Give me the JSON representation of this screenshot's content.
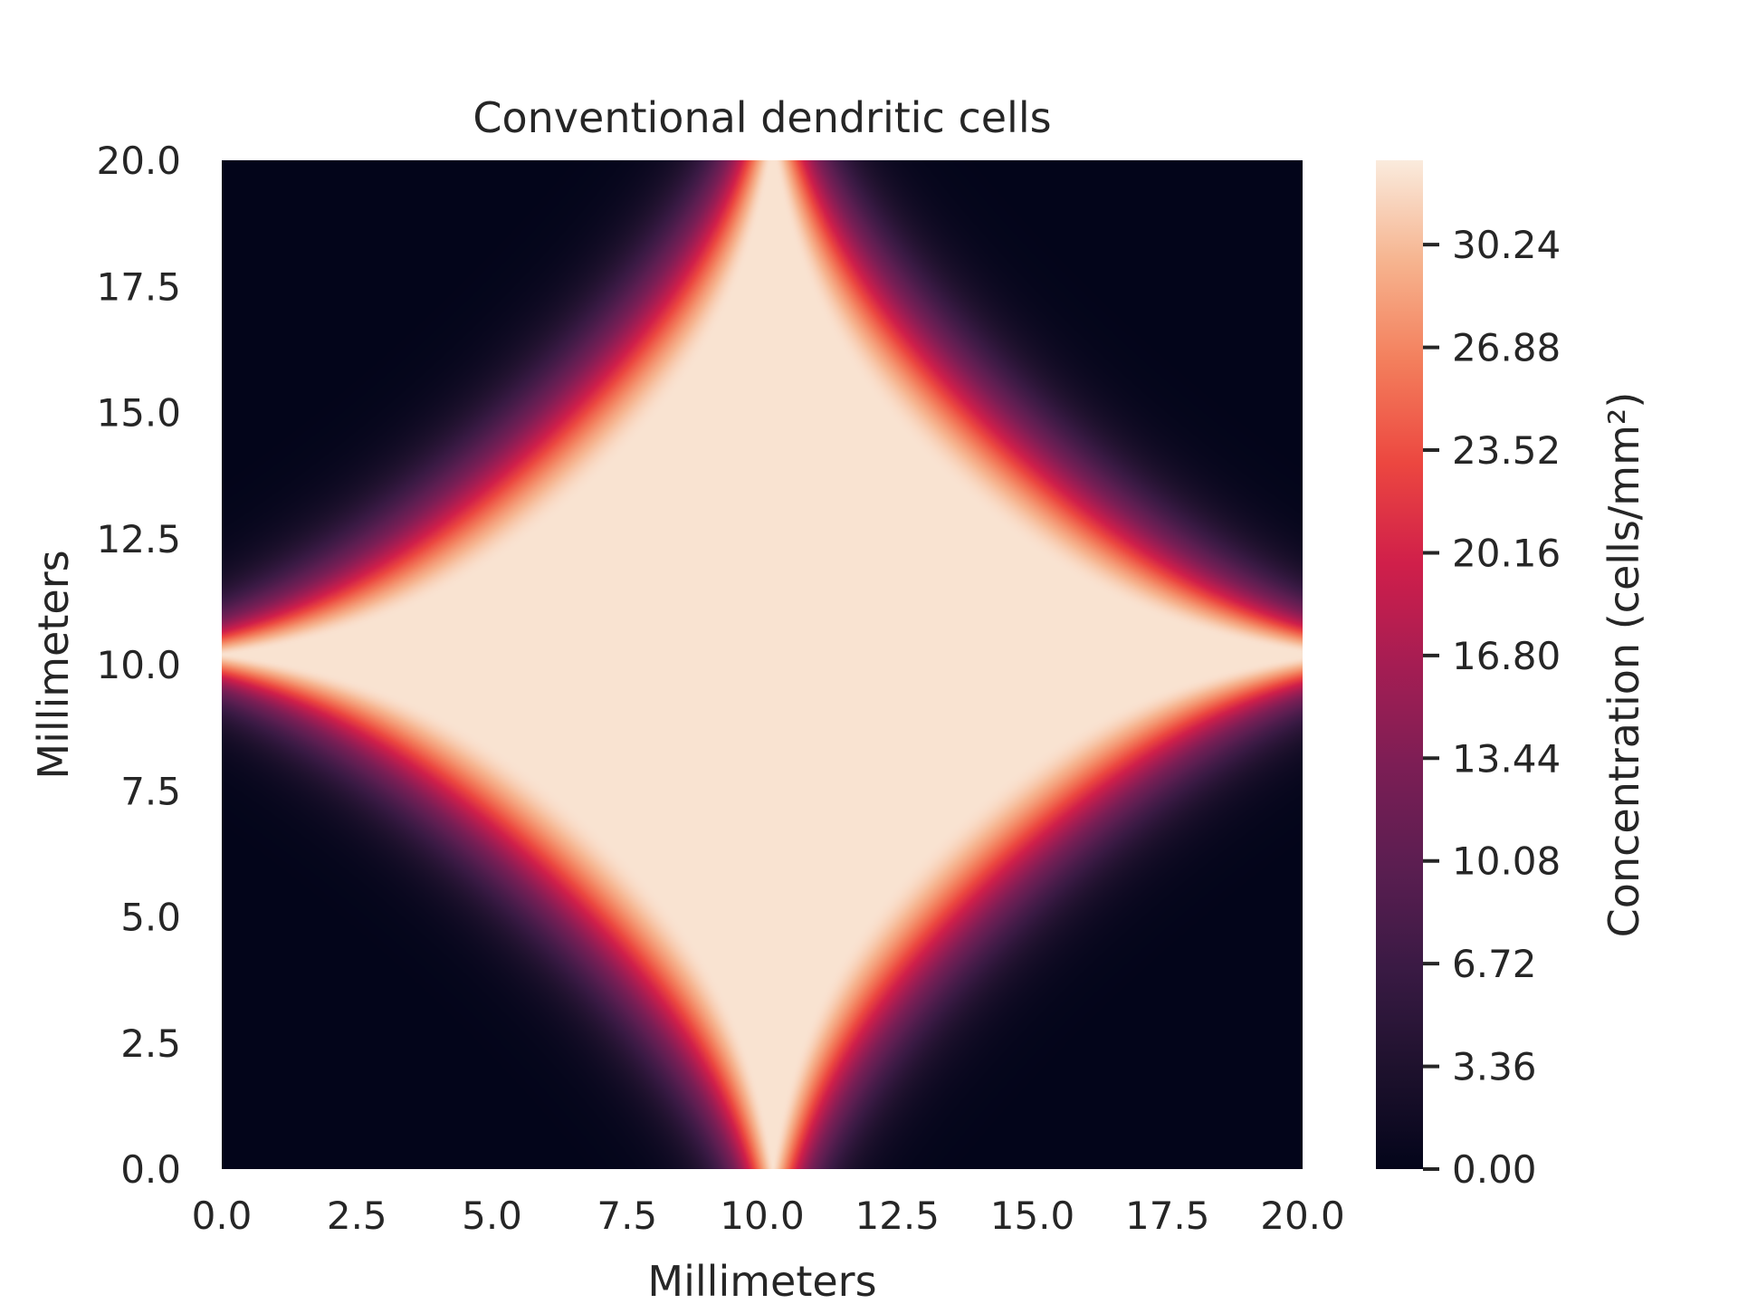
{
  "chart_data": {
    "type": "heatmap",
    "title": "Conventional dendritic cells",
    "xlabel": "Millimeters",
    "ylabel": "Millimeters",
    "xlim": [
      0.0,
      20.0
    ],
    "ylim": [
      0.0,
      20.0
    ],
    "x_ticks": [
      "0.0",
      "2.5",
      "5.0",
      "7.5",
      "10.0",
      "12.5",
      "15.0",
      "17.5",
      "20.0"
    ],
    "y_ticks": [
      "0.0",
      "2.5",
      "5.0",
      "7.5",
      "10.0",
      "12.5",
      "15.0",
      "17.5",
      "20.0"
    ],
    "colorbar": {
      "label": "Concentration (cells/mm²)",
      "range": [
        0.0,
        33.0
      ],
      "ticks": [
        "0.00",
        "3.36",
        "6.72",
        "10.08",
        "13.44",
        "16.80",
        "20.16",
        "23.52",
        "26.88",
        "30.24"
      ],
      "colormap": "rocket"
    },
    "grid": false,
    "field": {
      "description": "Concentration peaks at the edge midpoints (10.2, 0), (10.2, 20), (0, 10.2), (20, 10.2) and fills a diamond-shaped plateau of ~32 around the center (10.2, 10.2); near zero in the four corners.",
      "center": [
        10.2,
        10.2
      ],
      "plateau_value": 32.5,
      "plateau_half_diagonal": 8.5,
      "transition_width": 3.5,
      "corner_value": 0.0
    }
  }
}
